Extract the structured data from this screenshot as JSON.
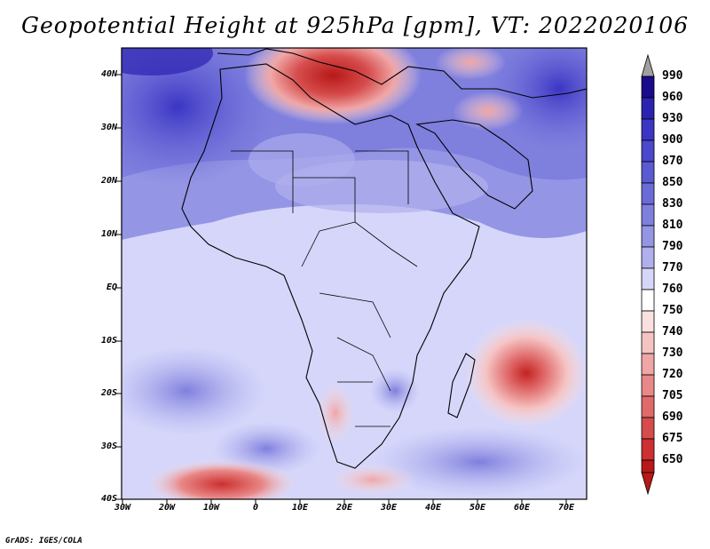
{
  "title": "Geopotential Height at 925hPa [gpm], VT: 2022020106",
  "credit": "GrADS: IGES/COLA",
  "lat_labels": [
    "40N",
    "30N",
    "20N",
    "10N",
    "EQ",
    "10S",
    "20S",
    "30S",
    "40S"
  ],
  "lon_labels": [
    "30W",
    "20W",
    "10W",
    "0",
    "10E",
    "20E",
    "30E",
    "40E",
    "50E",
    "60E",
    "70E"
  ],
  "legend": {
    "levels": [
      "990",
      "960",
      "930",
      "900",
      "870",
      "850",
      "830",
      "810",
      "790",
      "770",
      "760",
      "750",
      "740",
      "730",
      "720",
      "705",
      "690",
      "675",
      "650"
    ],
    "colors": [
      "#1a0a8c",
      "#2c22b0",
      "#3b35c4",
      "#4a48cc",
      "#5a5ad2",
      "#6b6bd8",
      "#7f7fde",
      "#9595e5",
      "#b0b0ee",
      "#d5d6fa",
      "#ffffff",
      "#fbe0e0",
      "#f6c3c3",
      "#f0a6a6",
      "#e98888",
      "#e06a6a",
      "#d64c4c",
      "#cc3030",
      "#b81818"
    ]
  },
  "map": {
    "region": "Africa",
    "extent": {
      "lon_min": -30,
      "lon_max": 75,
      "lat_min": -40,
      "lat_max": 45
    },
    "features": {
      "highs": [
        {
          "name": "mediterranean-high",
          "lon": 20,
          "lat": 38
        },
        {
          "name": "south-atlantic-high",
          "lon": -12,
          "lat": -38
        },
        {
          "name": "mascarene-high",
          "lon": 61,
          "lat": -17
        },
        {
          "name": "arabian-high",
          "lon": 52,
          "lat": 33
        },
        {
          "name": "kalahari-high",
          "lon": 19,
          "lat": -22
        }
      ]
    }
  }
}
